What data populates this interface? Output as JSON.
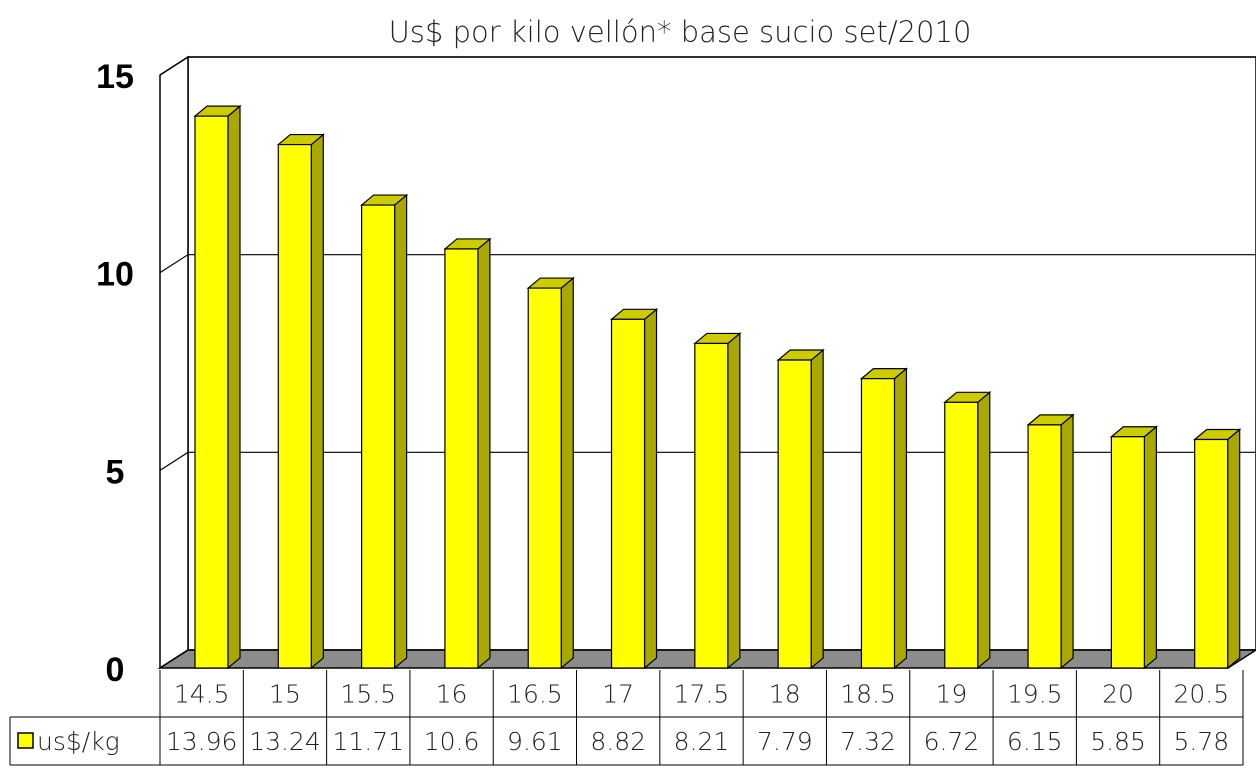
{
  "chart_data": {
    "type": "bar3d",
    "title": "Us$ por kilo vellón* base sucio  set/2010",
    "categories": [
      "14.5",
      "15",
      "15.5",
      "16",
      "16.5",
      "17",
      "17.5",
      "18",
      "18.5",
      "19",
      "19.5",
      "20",
      "20.5"
    ],
    "series": [
      {
        "name": "us$/kg",
        "color": "#ffff00",
        "values": [
          13.96,
          13.24,
          11.71,
          10.6,
          9.61,
          8.82,
          8.21,
          7.79,
          7.32,
          6.72,
          6.15,
          5.85,
          5.78
        ]
      }
    ],
    "ylim": [
      0,
      15
    ],
    "yticks": [
      0,
      5,
      10,
      15
    ],
    "grid": true,
    "data_table": true
  }
}
